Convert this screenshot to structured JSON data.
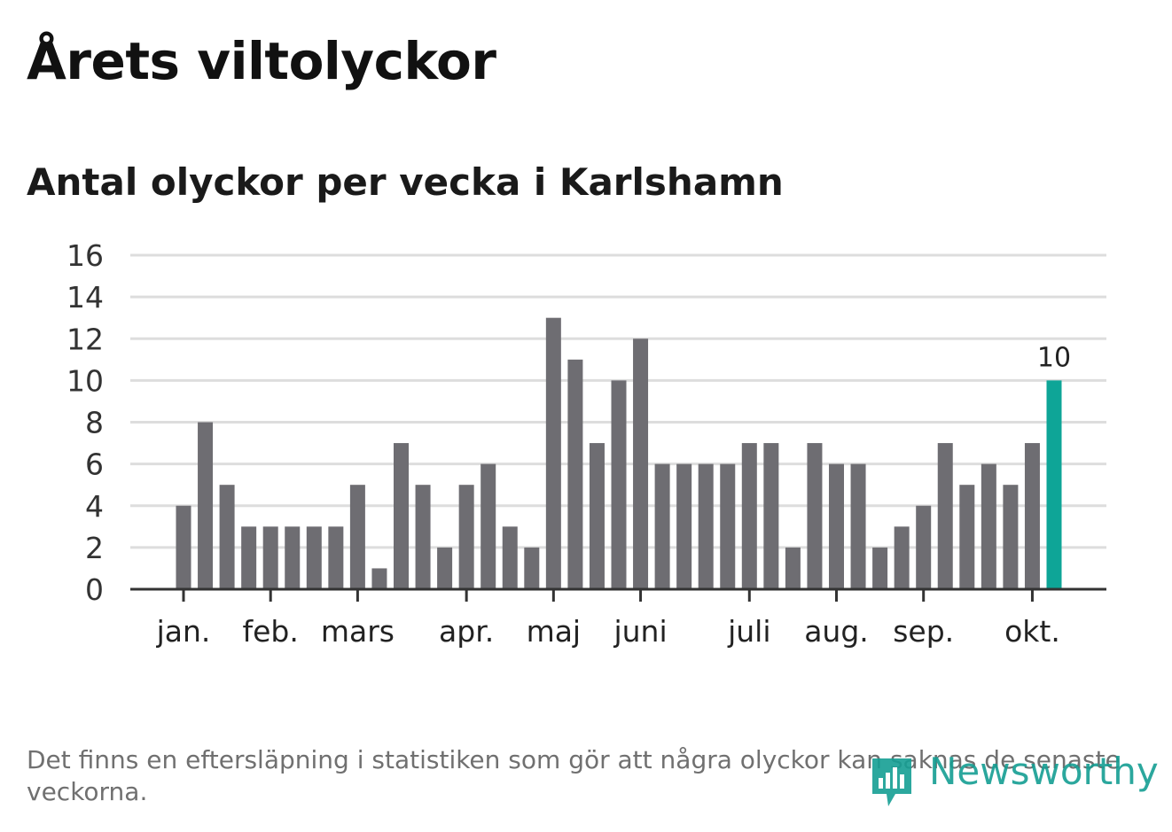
{
  "title": "Årets viltolyckor",
  "subtitle": "Antal olyckor per vecka i Karlshamn",
  "footnote": "Det finns en eftersläpning i statistiken som gör att några olyckor kan saknas de senaste veckorna.",
  "logo_text": "Newsworthy",
  "colors": {
    "bar": "#6e6d72",
    "highlight": "#0ea597",
    "grid": "#dddddd",
    "axis": "#333333",
    "logo": "#159e93"
  },
  "chart_data": {
    "type": "bar",
    "values": [
      4,
      8,
      5,
      3,
      3,
      3,
      3,
      3,
      5,
      1,
      7,
      5,
      2,
      5,
      6,
      3,
      2,
      13,
      11,
      7,
      10,
      12,
      6,
      6,
      6,
      6,
      7,
      7,
      2,
      7,
      6,
      6,
      2,
      3,
      4,
      7,
      5,
      6,
      5,
      7,
      10
    ],
    "highlight_last": true,
    "highlight_label": "10",
    "ylim": [
      0,
      16
    ],
    "yticks": [
      0,
      2,
      4,
      6,
      8,
      10,
      12,
      14,
      16
    ],
    "xticks": [
      {
        "label": "jan.",
        "week": 1
      },
      {
        "label": "feb.",
        "week": 5
      },
      {
        "label": "mars",
        "week": 9
      },
      {
        "label": "apr.",
        "week": 14
      },
      {
        "label": "maj",
        "week": 18
      },
      {
        "label": "juni",
        "week": 22
      },
      {
        "label": "juli",
        "week": 27
      },
      {
        "label": "aug.",
        "week": 31
      },
      {
        "label": "sep.",
        "week": 35
      },
      {
        "label": "okt.",
        "week": 40
      }
    ],
    "grid": true
  }
}
